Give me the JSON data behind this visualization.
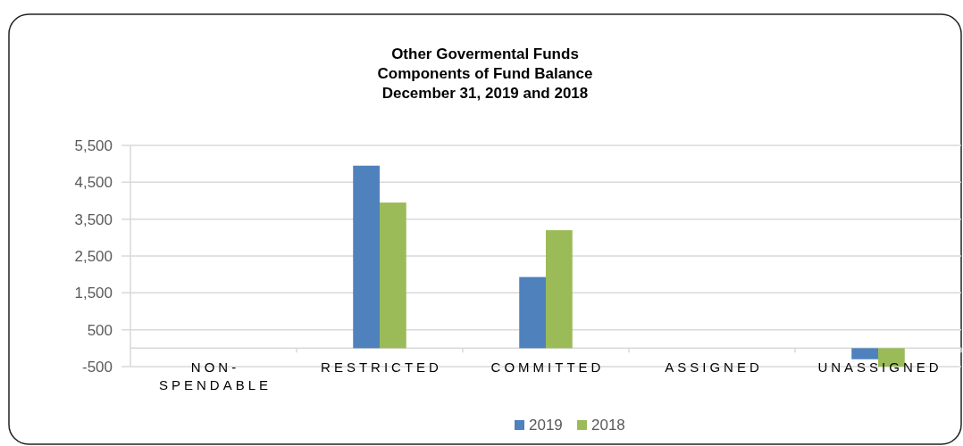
{
  "chart_data": {
    "type": "bar",
    "title": "Other Govermental Funds\nComponents of Fund Balance\nDecember 31, 2019 and 2018",
    "categories": [
      "NON-SPENDABLE",
      "RESTRICTED",
      "COMMITTED",
      "ASSIGNED",
      "UNASSIGNED"
    ],
    "series": [
      {
        "name": "2019",
        "color": "#4f81bd",
        "values": [
          0,
          4950,
          1930,
          0,
          -300
        ]
      },
      {
        "name": "2018",
        "color": "#9bbb59",
        "values": [
          0,
          3950,
          3200,
          0,
          -500
        ]
      }
    ],
    "ylim": [
      -500,
      5500
    ],
    "yticks": [
      {
        "value": -500,
        "label": "-500"
      },
      {
        "value": 500,
        "label": "500"
      },
      {
        "value": 1500,
        "label": "1,500"
      },
      {
        "value": 2500,
        "label": "2,500"
      },
      {
        "value": 3500,
        "label": "3,500"
      },
      {
        "value": 4500,
        "label": "4,500"
      },
      {
        "value": 5500,
        "label": "5,500"
      }
    ],
    "grid": "y",
    "legend": "bottom"
  }
}
